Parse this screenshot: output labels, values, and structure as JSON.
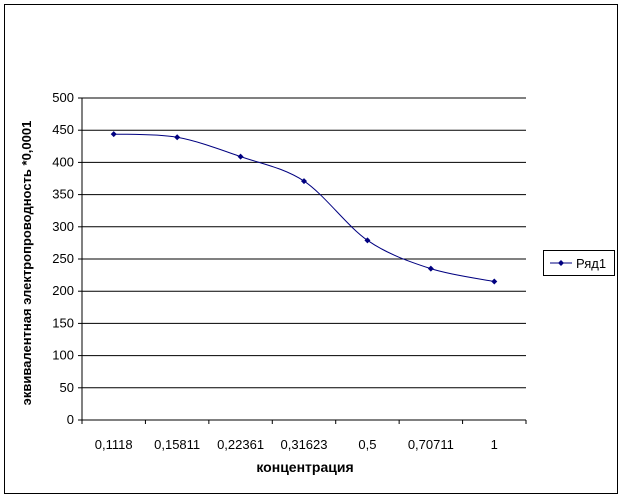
{
  "chart_data": {
    "type": "line",
    "title": "",
    "xlabel": "концентрация",
    "ylabel": "эквивалентная электропроводность *0,0001",
    "categories": [
      "0,1118",
      "0,15811",
      "0,22361",
      "0,31623",
      "0,5",
      "0,70711",
      "1"
    ],
    "ylim": [
      0,
      500
    ],
    "yticks": [
      0,
      50,
      100,
      150,
      200,
      250,
      300,
      350,
      400,
      450,
      500
    ],
    "grid": "horizontal",
    "legend_position": "right",
    "series": [
      {
        "name": "Ряд1",
        "values": [
          444,
          439,
          409,
          371,
          279,
          235,
          215
        ],
        "color": "#000080"
      }
    ]
  }
}
